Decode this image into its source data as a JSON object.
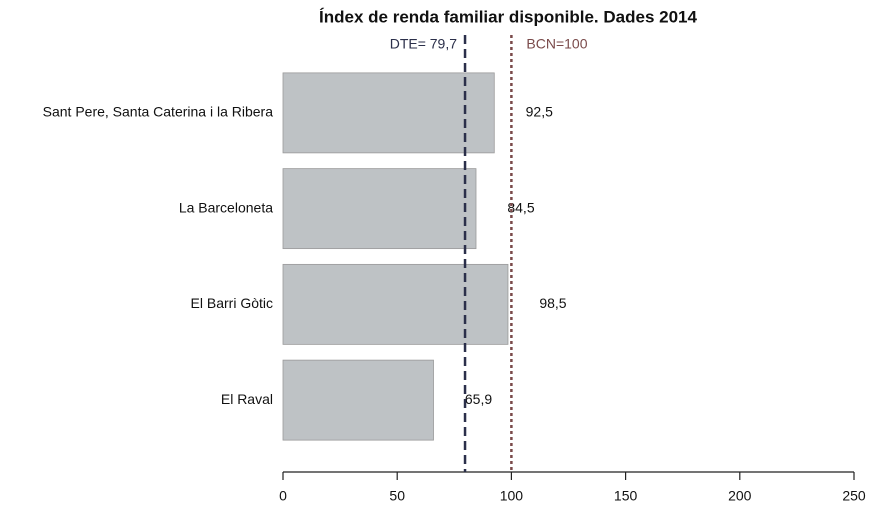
{
  "chart_data": {
    "type": "barh",
    "title": "Índex de renda familiar disponible. Dades 2014",
    "categories": [
      "Sant Pere, Santa Caterina i la Ribera",
      "La Barceloneta",
      "El Barri Gòtic",
      "El Raval"
    ],
    "values": [
      92.5,
      84.5,
      98.5,
      65.9
    ],
    "value_labels": [
      "92,5",
      "84,5",
      "98,5",
      "65,9"
    ],
    "color": "#bec2c5",
    "xlim": [
      0,
      250
    ],
    "xticks": [
      0,
      50,
      100,
      150,
      200,
      250
    ],
    "reference_lines": [
      {
        "value": 79.7,
        "label": "DTE= 79,7",
        "color": "#2b2f4a",
        "style": "dashed"
      },
      {
        "value": 100,
        "label": "BCN=100",
        "color": "#7a4a4a",
        "style": "dotted"
      }
    ]
  }
}
